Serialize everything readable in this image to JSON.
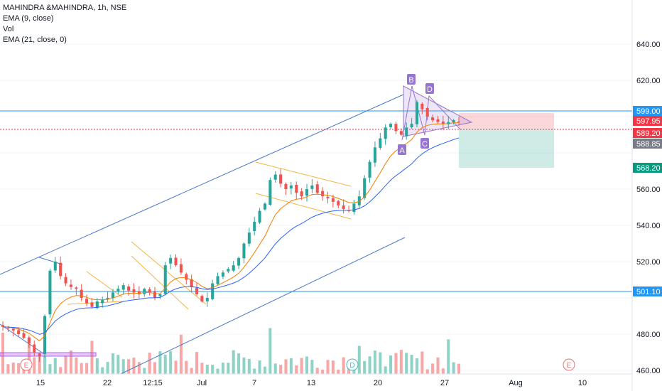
{
  "legend": {
    "title": "MAHINDRA &MAHINDRA, 1h, NSE",
    "line1": "EMA (9, close)",
    "line2": "Vol",
    "line3": "EMA (21, close, 0)"
  },
  "chart_data": {
    "type": "candlestick",
    "symbol": "MAHINDRA &MAHINDRA",
    "interval": "1h",
    "exchange": "NSE",
    "ylim": [
      455,
      660
    ],
    "y_ticks": [
      460,
      480,
      500,
      520,
      540,
      560,
      580,
      600,
      620,
      640
    ],
    "y_tick_labels": [
      "460.00",
      "480.00",
      "",
      "520.00",
      "540.00",
      "560.00",
      "",
      "",
      "620.00",
      "640.00"
    ],
    "x_ticks": [
      "15",
      "22",
      "12:15",
      "Jul",
      "7",
      "13",
      "20",
      "27",
      "Aug",
      "10"
    ],
    "price_closes": [
      484,
      483,
      482,
      480,
      478,
      475,
      470,
      468,
      490,
      515,
      520,
      512,
      508,
      506,
      505,
      500,
      497,
      495,
      498,
      499,
      500,
      503,
      505,
      507,
      504,
      503,
      502,
      505,
      503,
      500,
      502,
      518,
      522,
      518,
      514,
      510,
      506,
      502,
      498,
      500,
      508,
      512,
      514,
      516,
      518,
      522,
      530,
      536,
      542,
      548,
      552,
      565,
      568,
      563,
      560,
      562,
      558,
      556,
      560,
      562,
      558,
      556,
      555,
      553,
      551,
      549,
      548,
      552,
      556,
      566,
      575,
      583,
      588,
      594,
      596,
      592,
      590,
      594,
      596,
      608,
      604,
      600,
      598,
      597,
      596,
      597,
      598,
      597
    ],
    "price_levels": [
      {
        "label": "599.00",
        "value": 599.0,
        "color": "#2196f3"
      },
      {
        "label": "597.95",
        "value": 597.95,
        "color": "#f23645"
      },
      {
        "label": "589.20",
        "value": 589.2,
        "color": "#f23645"
      },
      {
        "label": "588.85",
        "value": 588.85,
        "color": "#787b86"
      },
      {
        "label": "568.20",
        "value": 568.2,
        "color": "#089981"
      },
      {
        "label": "501.10",
        "value": 501.1,
        "color": "#2196f3"
      }
    ],
    "pattern_points": [
      "A",
      "B",
      "C",
      "D"
    ],
    "event_markers": [
      "E",
      "D",
      "E"
    ],
    "series": [
      {
        "name": "EMA (9, close)",
        "color": "#f57c00"
      },
      {
        "name": "EMA (21, close, 0)",
        "color": "#2962ff"
      },
      {
        "name": "Vol"
      }
    ],
    "colors": {
      "up": "#26a69a",
      "down": "#ef5350",
      "channel": "#4a78c8",
      "flag": "#f5b342",
      "pattern": "#9575cd"
    }
  }
}
